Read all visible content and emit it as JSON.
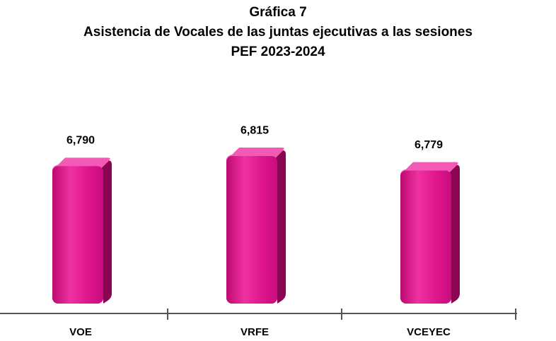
{
  "chart_data": {
    "type": "bar",
    "title": [
      "Gráfica 7",
      "Asistencia de Vocales de las juntas ejecutivas a las sesiones",
      "PEF 2023-2024"
    ],
    "categories": [
      "VOE",
      "VRFE",
      "VCEYEC"
    ],
    "values": [
      6790,
      6815,
      6779
    ],
    "value_labels": [
      "6,790",
      "6,815",
      "6,779"
    ],
    "color": "#e0168c",
    "ylim": [
      6450,
      6850
    ]
  }
}
